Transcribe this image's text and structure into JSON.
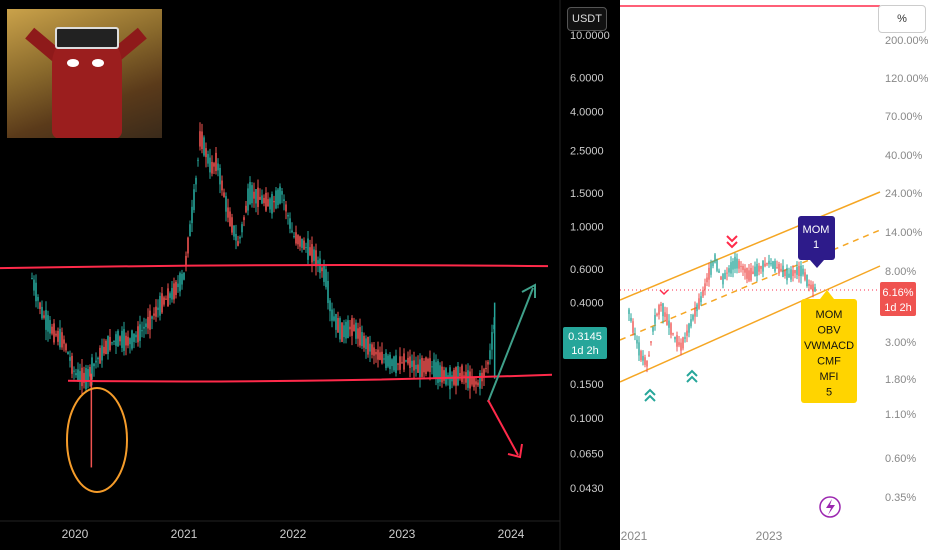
{
  "chart_data": [
    {
      "type": "line",
      "panel": "left",
      "quote_currency": "USDT",
      "y_scale": "log",
      "ylim": [
        0.035,
        12.0
      ],
      "y_ticks": [
        "10.0000",
        "6.0000",
        "4.0000",
        "2.5000",
        "1.5000",
        "1.0000",
        "0.6000",
        "0.4000",
        "0.1500",
        "0.1000",
        "0.0650",
        "0.0430"
      ],
      "x_ticks": [
        "2020",
        "2021",
        "2022",
        "2023",
        "2024"
      ],
      "current_price": {
        "value": "0.3145",
        "timeframe": "1d 2h"
      },
      "series": [
        {
          "x": [
            2019.6,
            2019.7,
            2019.8,
            2019.9,
            2020.0,
            2020.1,
            2020.2,
            2020.3,
            2020.4,
            2020.5,
            2020.6,
            2020.7,
            2020.8,
            2020.9,
            2021.0,
            2021.1,
            2021.15,
            2021.25,
            2021.3,
            2021.4,
            2021.5,
            2021.6,
            2021.7,
            2021.8,
            2021.9,
            2022.0,
            2022.1,
            2022.2,
            2022.3,
            2022.35,
            2022.45,
            2022.55,
            2022.65,
            2022.75,
            2022.85,
            2022.95,
            2023.05,
            2023.15,
            2023.25,
            2023.35,
            2023.45,
            2023.55,
            2023.6,
            2023.7,
            2023.75,
            2023.8,
            2023.85
          ],
          "y": [
            0.55,
            0.35,
            0.28,
            0.25,
            0.17,
            0.16,
            0.2,
            0.24,
            0.26,
            0.25,
            0.28,
            0.33,
            0.4,
            0.45,
            0.55,
            1.5,
            3.0,
            2.0,
            2.2,
            1.2,
            0.8,
            1.5,
            1.4,
            1.3,
            1.5,
            0.9,
            0.8,
            0.7,
            0.55,
            0.35,
            0.28,
            0.3,
            0.25,
            0.22,
            0.2,
            0.19,
            0.2,
            0.18,
            0.19,
            0.17,
            0.16,
            0.17,
            0.16,
            0.15,
            0.17,
            0.2,
            0.3145
          ]
        }
      ],
      "annotations": {
        "support_level": 0.16,
        "resistance_level": 0.62,
        "spike_low": 0.055
      }
    },
    {
      "type": "line",
      "panel": "right",
      "y_scale": "log",
      "y_unit": "%",
      "y_ticks": [
        "200.00%",
        "120.00%",
        "70.00%",
        "40.00%",
        "24.00%",
        "14.00%",
        "8.00%",
        "3.00%",
        "1.80%",
        "1.10%",
        "0.60%",
        "0.35%"
      ],
      "x_ticks": [
        "2021",
        "2023"
      ],
      "current_value": {
        "value": "6.16%",
        "timeframe": "1d 2h"
      },
      "series": [
        {
          "x": [
            2020.9,
            2021.0,
            2021.1,
            2021.2,
            2021.3,
            2021.4,
            2021.5,
            2021.6,
            2021.7,
            2021.8,
            2021.9,
            2022.0,
            2022.1,
            2022.2,
            2022.3,
            2022.4,
            2022.5,
            2022.6,
            2022.7,
            2022.8,
            2022.9,
            2023.0,
            2023.1,
            2023.2,
            2023.3,
            2023.4,
            2023.5,
            2023.6,
            2023.7
          ],
          "y": [
            5.0,
            3.5,
            2.5,
            2.2,
            4.0,
            5.0,
            4.0,
            3.2,
            2.8,
            3.5,
            4.5,
            5.5,
            7.5,
            9.5,
            7.0,
            8.0,
            9.0,
            8.5,
            7.5,
            8.0,
            8.5,
            9.0,
            8.5,
            8.0,
            7.5,
            8.0,
            8.0,
            6.5,
            6.16
          ]
        }
      ],
      "labels": {
        "top_label": [
          "MOM",
          "1"
        ],
        "bottom_label": [
          "MOM",
          "OBV",
          "VWMACD",
          "CMF",
          "MFI",
          "5"
        ]
      }
    }
  ]
}
